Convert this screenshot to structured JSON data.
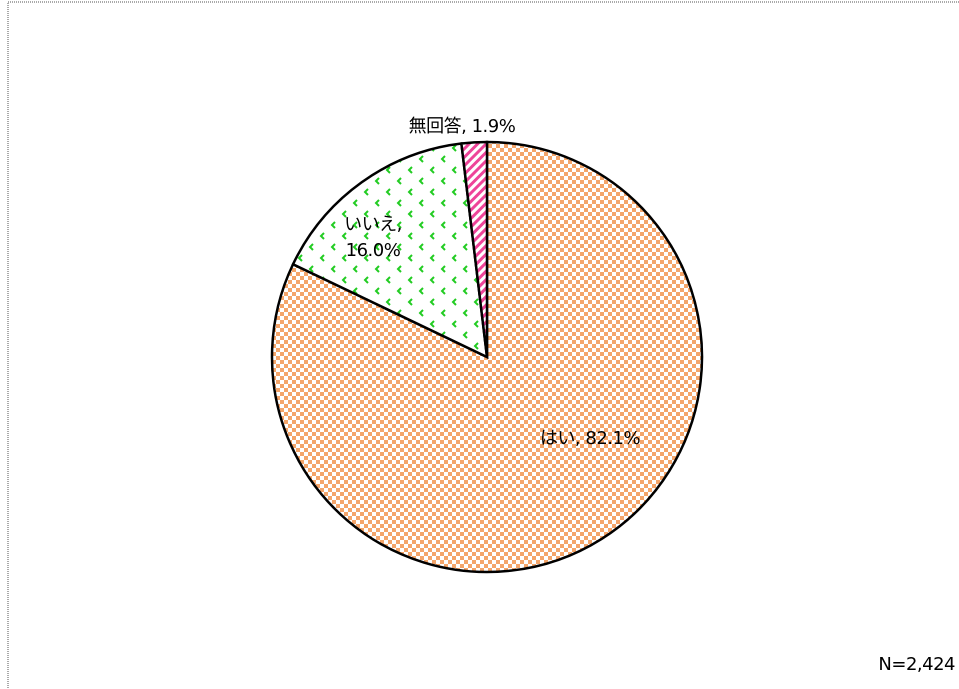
{
  "chart_data": {
    "type": "pie",
    "values": [
      82.1,
      16.0,
      1.9
    ],
    "value_labels": [
      "はい, 82.1%",
      "いいえ, 16.0%",
      "無回答, 1.9%"
    ],
    "colors": [
      "#f4a56a",
      "#22cc22",
      "#ee4499"
    ],
    "annotation": "N=2,424"
  }
}
